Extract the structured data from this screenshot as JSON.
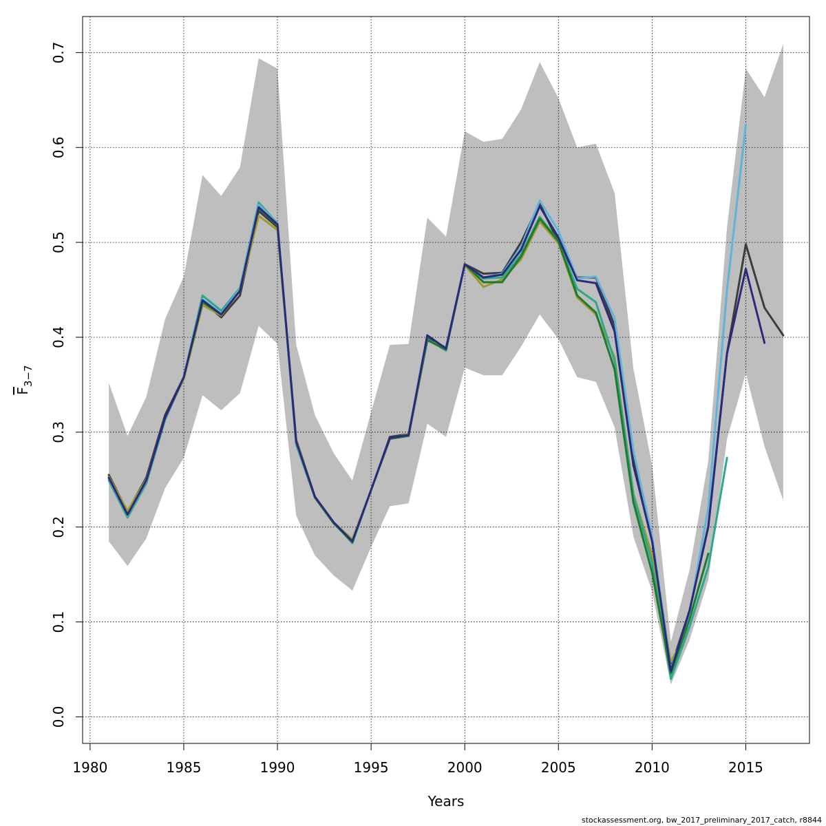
{
  "chart_data": {
    "type": "line",
    "title": "",
    "xlabel": "Years",
    "ylabel_main": "F",
    "ylabel_sub": "3−7",
    "xlim": [
      1979.6,
      2018.4
    ],
    "ylim": [
      -0.028,
      0.738
    ],
    "x_ticks": [
      1980,
      1985,
      1990,
      1995,
      2000,
      2005,
      2010,
      2015
    ],
    "y_ticks": [
      0.0,
      0.1,
      0.2,
      0.3,
      0.4,
      0.5,
      0.6,
      0.7
    ],
    "x_tick_labels": [
      "1980",
      "1985",
      "1990",
      "1995",
      "2000",
      "2005",
      "2010",
      "2015"
    ],
    "y_tick_labels": [
      "0.0",
      "0.1",
      "0.2",
      "0.3",
      "0.4",
      "0.5",
      "0.6",
      "0.7"
    ],
    "grid": true,
    "band": {
      "color": "#bebebe",
      "x": [
        1981,
        1982,
        1983,
        1984,
        1985,
        1986,
        1987,
        1988,
        1989,
        1990,
        1991,
        1992,
        1993,
        1994,
        1995,
        1996,
        1997,
        1998,
        1999,
        2000,
        2001,
        2002,
        2003,
        2004,
        2005,
        2006,
        2007,
        2008,
        2009,
        2010,
        2011,
        2012,
        2013,
        2014,
        2015,
        2016,
        2017
      ],
      "upper": [
        0.352,
        0.296,
        0.337,
        0.419,
        0.464,
        0.571,
        0.549,
        0.579,
        0.694,
        0.683,
        0.392,
        0.318,
        0.278,
        0.249,
        0.321,
        0.392,
        0.393,
        0.526,
        0.506,
        0.617,
        0.606,
        0.609,
        0.64,
        0.69,
        0.652,
        0.6,
        0.604,
        0.552,
        0.367,
        0.265,
        0.079,
        0.155,
        0.27,
        0.516,
        0.683,
        0.653,
        0.709
      ],
      "lower": [
        0.185,
        0.159,
        0.188,
        0.241,
        0.273,
        0.339,
        0.323,
        0.341,
        0.412,
        0.393,
        0.212,
        0.17,
        0.149,
        0.133,
        0.179,
        0.222,
        0.225,
        0.309,
        0.295,
        0.368,
        0.36,
        0.36,
        0.39,
        0.424,
        0.398,
        0.358,
        0.353,
        0.305,
        0.19,
        0.132,
        0.034,
        0.081,
        0.144,
        0.293,
        0.362,
        0.285,
        0.228
      ]
    },
    "series": [
      {
        "color": "#3c3c3c",
        "x": [
          1981,
          1982,
          1983,
          1984,
          1985,
          1986,
          1987,
          1988,
          1989,
          1990,
          1991,
          1992,
          1993,
          1994,
          1995,
          1996,
          1997,
          1998,
          1999,
          2000,
          2001,
          2002,
          2003,
          2004,
          2005,
          2006,
          2007,
          2008,
          2009,
          2010,
          2011,
          2012,
          2013,
          2014,
          2015,
          2016,
          2017
        ],
        "values": [
          0.255,
          0.216,
          0.252,
          0.318,
          0.358,
          0.438,
          0.421,
          0.444,
          0.533,
          0.516,
          0.292,
          0.232,
          0.205,
          0.186,
          0.239,
          0.295,
          0.298,
          0.399,
          0.389,
          0.477,
          0.467,
          0.468,
          0.5,
          0.541,
          0.5,
          0.463,
          0.463,
          0.412,
          0.272,
          0.187,
          0.052,
          0.112,
          0.201,
          0.383,
          0.498,
          0.431,
          0.402
        ]
      },
      {
        "color": "#9e9a2e",
        "x": [
          1981,
          1982,
          1983,
          1984,
          1985,
          1986,
          1987,
          1988,
          1989,
          1990,
          1991,
          1992,
          1993,
          1994,
          1995,
          1996,
          1997,
          1998,
          1999,
          2000,
          2001,
          2002,
          2003,
          2004,
          2005,
          2006,
          2007,
          2008,
          2009,
          2010,
          2011,
          2012
        ],
        "values": [
          0.253,
          0.217,
          0.25,
          0.314,
          0.356,
          0.434,
          0.423,
          0.449,
          0.528,
          0.513,
          0.291,
          0.232,
          0.205,
          0.187,
          0.239,
          0.293,
          0.298,
          0.397,
          0.389,
          0.476,
          0.453,
          0.461,
          0.482,
          0.522,
          0.499,
          0.442,
          0.424,
          0.379,
          0.235,
          0.17,
          0.058,
          0.095
        ]
      },
      {
        "color": "#2ca88c",
        "x": [
          1981,
          1982,
          1983,
          1984,
          1985,
          1986,
          1987,
          1988,
          1989,
          1990,
          1991,
          1992,
          1993,
          1994,
          1995,
          1996,
          1997,
          1998,
          1999,
          2000,
          2001,
          2002,
          2003,
          2004,
          2005,
          2006,
          2007,
          2008,
          2009,
          2010,
          2011,
          2012,
          2013,
          2014
        ],
        "values": [
          0.249,
          0.21,
          0.246,
          0.313,
          0.358,
          0.444,
          0.428,
          0.452,
          0.542,
          0.52,
          0.287,
          0.231,
          0.205,
          0.183,
          0.239,
          0.293,
          0.297,
          0.398,
          0.386,
          0.477,
          0.462,
          0.463,
          0.487,
          0.527,
          0.501,
          0.451,
          0.437,
          0.375,
          0.234,
          0.162,
          0.04,
          0.095,
          0.158,
          0.273
        ]
      },
      {
        "color": "#1e7a2e",
        "x": [
          1981,
          1982,
          1983,
          1984,
          1985,
          1986,
          1987,
          1988,
          1989,
          1990,
          1991,
          1992,
          1993,
          1994,
          1995,
          1996,
          1997,
          1998,
          1999,
          2000,
          2001,
          2002,
          2003,
          2004,
          2005,
          2006,
          2007,
          2008,
          2009,
          2010,
          2011,
          2012,
          2013
        ],
        "values": [
          0.251,
          0.212,
          0.248,
          0.314,
          0.358,
          0.437,
          0.424,
          0.45,
          0.536,
          0.518,
          0.289,
          0.231,
          0.204,
          0.184,
          0.239,
          0.293,
          0.296,
          0.397,
          0.387,
          0.477,
          0.458,
          0.458,
          0.485,
          0.525,
          0.501,
          0.444,
          0.426,
          0.366,
          0.226,
          0.152,
          0.046,
          0.103,
          0.172
        ]
      },
      {
        "color": "#5fb4d8",
        "x": [
          1981,
          1982,
          1983,
          1984,
          1985,
          1986,
          1987,
          1988,
          1989,
          1990,
          1991,
          1992,
          1993,
          1994,
          1995,
          1996,
          1997,
          1998,
          1999,
          2000,
          2001,
          2002,
          2003,
          2004,
          2005,
          2006,
          2007,
          2008,
          2009,
          2010,
          2011,
          2012,
          2013,
          2014,
          2015
        ],
        "values": [
          0.251,
          0.212,
          0.248,
          0.314,
          0.358,
          0.44,
          0.425,
          0.451,
          0.54,
          0.52,
          0.289,
          0.232,
          0.205,
          0.185,
          0.239,
          0.294,
          0.297,
          0.402,
          0.388,
          0.477,
          0.463,
          0.467,
          0.495,
          0.544,
          0.512,
          0.462,
          0.464,
          0.42,
          0.28,
          0.19,
          0.05,
          0.11,
          0.22,
          0.45,
          0.624
        ]
      },
      {
        "color": "#2b2a7a",
        "x": [
          1981,
          1982,
          1983,
          1984,
          1985,
          1986,
          1987,
          1988,
          1989,
          1990,
          1991,
          1992,
          1993,
          1994,
          1995,
          1996,
          1997,
          1998,
          1999,
          2000,
          2001,
          2002,
          2003,
          2004,
          2005,
          2006,
          2007,
          2008,
          2009,
          2010,
          2011,
          2012,
          2013,
          2014,
          2015,
          2016
        ],
        "values": [
          0.252,
          0.213,
          0.249,
          0.315,
          0.358,
          0.439,
          0.424,
          0.449,
          0.537,
          0.519,
          0.29,
          0.232,
          0.205,
          0.185,
          0.239,
          0.294,
          0.297,
          0.402,
          0.388,
          0.477,
          0.463,
          0.466,
          0.492,
          0.538,
          0.505,
          0.46,
          0.457,
          0.406,
          0.265,
          0.185,
          0.048,
          0.112,
          0.2,
          0.383,
          0.472,
          0.394
        ]
      }
    ]
  },
  "footer": {
    "text": "stockassessment.org, bw_2017_preliminary_2017_catch, r8844"
  }
}
